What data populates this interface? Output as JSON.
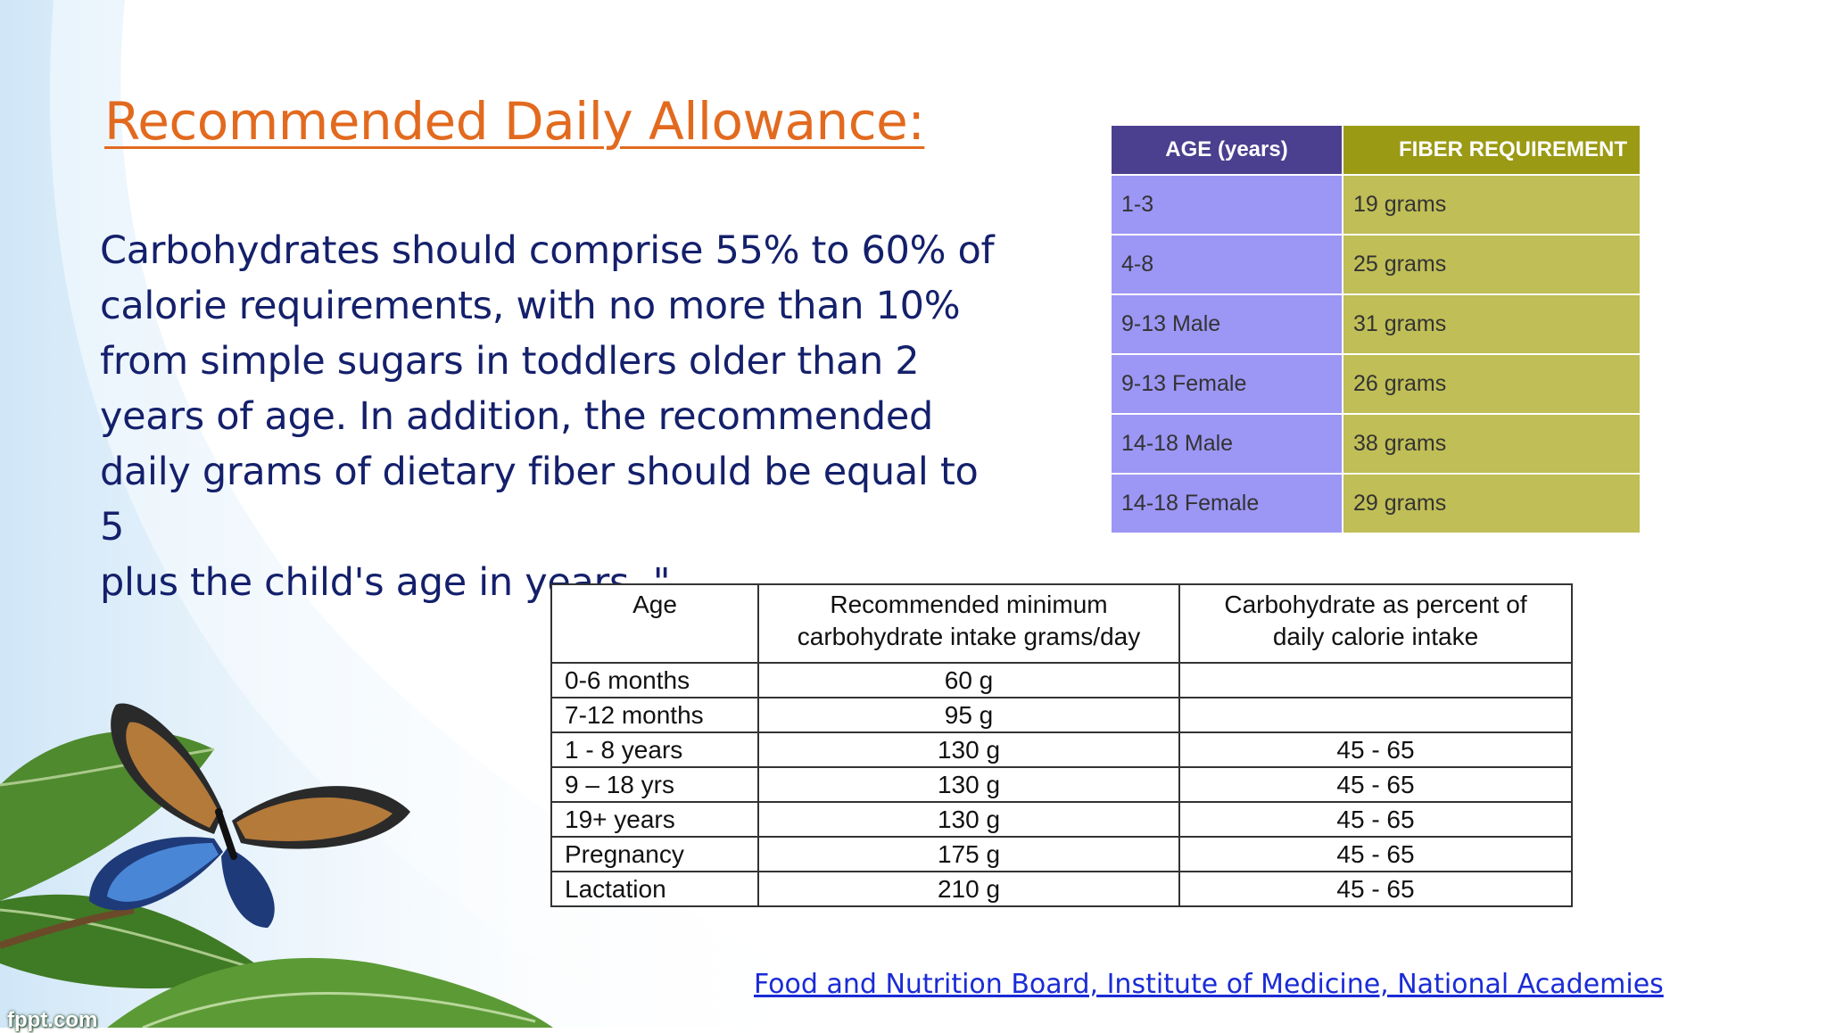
{
  "title": "Recommended Daily Allowance:",
  "body_lines": [
    "Carbohydrates should comprise 55% to 60% of",
    "calorie requirements, with no more than 10%",
    "from simple sugars in toddlers older than 2",
    "years of age. In addition, the recommended",
    "daily grams of dietary fiber should be equal to 5",
    "plus the child's age in years .\""
  ],
  "fiber_table": {
    "headers": [
      "AGE (years)",
      "FIBER REQUIREMENT"
    ],
    "rows": [
      [
        "1-3",
        "19 grams"
      ],
      [
        "4-8",
        "25 grams"
      ],
      [
        "9-13 Male",
        "31 grams"
      ],
      [
        "9-13 Female",
        "26 grams"
      ],
      [
        "14-18 Male",
        "38 grams"
      ],
      [
        "14-18 Female",
        "29 grams"
      ]
    ],
    "colors": {
      "header_age": "#4b3f8f",
      "header_fiber": "#9a9a14",
      "cell_age": "#9c96f5",
      "cell_fiber": "#c0be56"
    }
  },
  "carb_table": {
    "headers": {
      "age": "Age",
      "min_line1": "Recommended minimum",
      "min_line2": "carbohydrate intake grams/day",
      "pct_line1": "Carbohydrate as percent of",
      "pct_line2": "daily calorie intake"
    },
    "rows": [
      [
        "0-6 months",
        "60 g",
        ""
      ],
      [
        "7-12 months",
        "95 g",
        ""
      ],
      [
        "1 - 8 years",
        "130 g",
        "45 - 65"
      ],
      [
        "9 – 18 yrs",
        "130 g",
        "45 - 65"
      ],
      [
        "19+  years",
        "130 g",
        "45 - 65"
      ],
      [
        "Pregnancy",
        "175 g",
        "45 - 65"
      ],
      [
        "Lactation",
        "210 g",
        "45 - 65"
      ]
    ]
  },
  "source_link": "Food and Nutrition Board, Institute of Medicine, National Academies",
  "logo_text": "fppt.com",
  "icons": [
    "butterfly-icon",
    "leaf-icon"
  ],
  "colors": {
    "title": "#e26a1f",
    "body": "#14206b",
    "link": "#1a2bd6",
    "swoosh": "#cfe6f7"
  }
}
